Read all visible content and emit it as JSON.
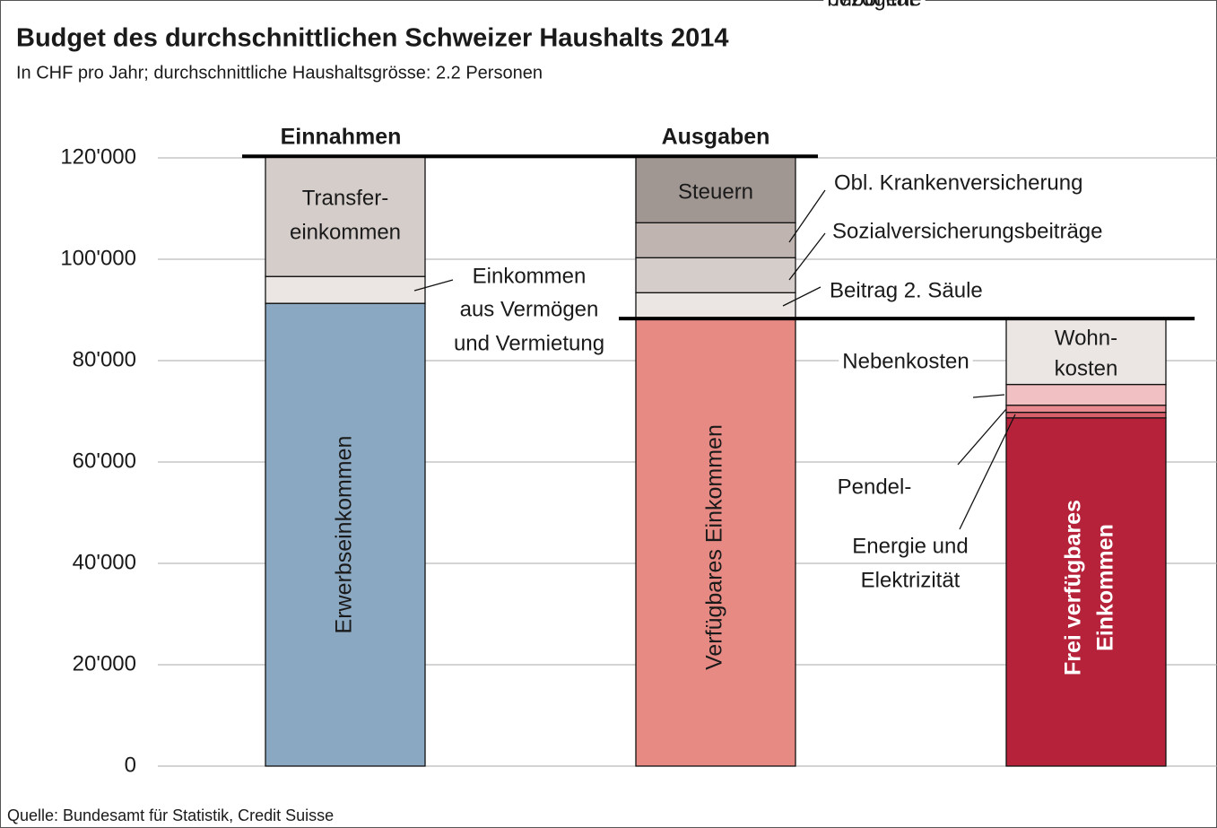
{
  "chart_data": {
    "type": "stacked_waterfall",
    "title": "Budget des durchschnittlichen Schweizer Haushalts 2014",
    "subtitle": "In CHF pro Jahr; durchschnittliche Haushaltsgrösse: 2.2 Personen",
    "source": "Quelle: Bundesamt für Statistik, Credit Suisse",
    "categories": [
      "Einnahmen",
      "Ausgaben",
      null
    ],
    "ylim": [
      0,
      120000
    ],
    "yticks": [
      0,
      {
        "value": 20000,
        "label": "20'000"
      },
      {
        "value": 40000,
        "label": "40'000"
      },
      {
        "value": 60000,
        "label": "60'000"
      },
      {
        "value": 80000,
        "label": "80'000"
      },
      {
        "value": 100000,
        "label": "100'000"
      },
      {
        "value": 120000,
        "label": "120'000"
      }
    ],
    "grid": true,
    "bars": [
      {
        "segments": [
          {
            "label": [
              "Erwerbseinkommen"
            ],
            "value": 91300,
            "color": "#8aa8c1"
          },
          {
            "label": [
              "Einkommen",
              "aus Vermögen",
              "und Vermietung"
            ],
            "value": 5300,
            "color": "#ebe6e3"
          },
          {
            "label": [
              "Transfer-",
              "einkommen"
            ],
            "value": 23700,
            "color": "#d5cdca"
          }
        ]
      },
      {
        "segments": [
          {
            "label": [
              "Verfügbares Einkommen"
            ],
            "value": 88300,
            "color": "#e88a84"
          },
          {
            "label": [
              "Beitrag 2. Säule"
            ],
            "value": 5100,
            "color": "#ebe6e3"
          },
          {
            "label": [
              "Sozialversicherungsbeiträge"
            ],
            "value": 6900,
            "color": "#d5cdca"
          },
          {
            "label": [
              "Obl. Krankenversicherung"
            ],
            "value": 6900,
            "color": "#bfb4b0"
          },
          {
            "label": [
              "Steuern"
            ],
            "value": 13100,
            "color": "#a09793"
          }
        ]
      },
      {
        "segments": [
          {
            "label": [
              "Frei verfügbares",
              "Einkommen"
            ],
            "value": 68700,
            "color": "#b5223a"
          },
          {
            "label": [
              "Energie und",
              "Elektrizität"
            ],
            "value": 1100,
            "color": "#d8606b"
          },
          {
            "label": [
              "Nebenkosten"
            ],
            "value": 1400,
            "color": "#e8888f"
          },
          {
            "label": [
              "Pendel-",
              "bezogene",
              "Mobilität"
            ],
            "value": 4100,
            "color": "#f1c0c2"
          },
          {
            "label": [
              "Wohn-",
              "kosten"
            ],
            "value": 13000,
            "color": "#ebe6e3"
          }
        ]
      }
    ]
  }
}
